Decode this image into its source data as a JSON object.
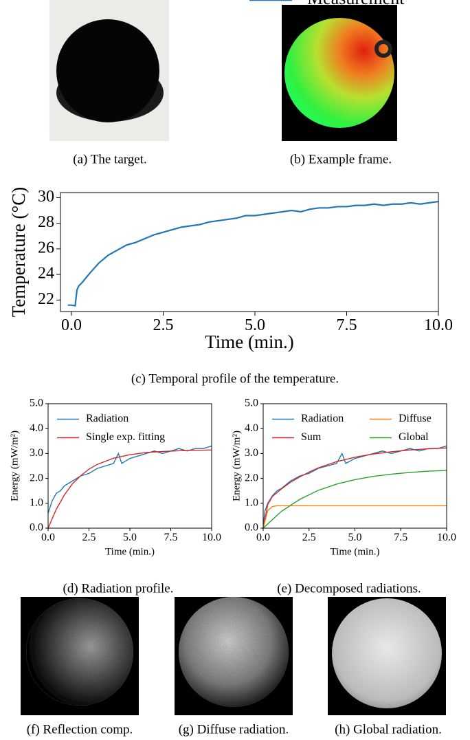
{
  "images": [
    {
      "caption": "(a) The target."
    },
    {
      "caption": "(b) Example frame."
    },
    {
      "caption": "(f) Reflection comp."
    },
    {
      "caption": "(g) Diffuse radiation."
    },
    {
      "caption": "(h) Global radiation."
    }
  ],
  "chart_data": [
    {
      "type": "line",
      "caption": "(c) Temporal profile of the temperature.",
      "xlabel": "Time (min.)",
      "ylabel": "Temperature (°C)",
      "xlim": [
        -0.3,
        10.0
      ],
      "ylim": [
        21.1,
        30.4
      ],
      "xticks": [
        {
          "value": 0,
          "label": "0.0"
        },
        2.5,
        {
          "value": 5,
          "label": "5.0"
        },
        7.5,
        {
          "value": 10,
          "label": "10.0"
        }
      ],
      "yticks": [
        22,
        24,
        26,
        28,
        30
      ],
      "legend": "lower right",
      "legend_columns": 1,
      "series": [
        {
          "name": "Measurement",
          "color": "#1f77b4",
          "x": [
            -0.1,
            0,
            0.1,
            0.15,
            0.2,
            0.3,
            0.5,
            0.75,
            1,
            1.25,
            1.5,
            1.75,
            2,
            2.25,
            2.5,
            2.75,
            3,
            3.25,
            3.5,
            3.75,
            4,
            4.25,
            4.5,
            4.75,
            5,
            5.25,
            5.5,
            5.75,
            6,
            6.25,
            6.5,
            6.75,
            7,
            7.25,
            7.5,
            7.75,
            8,
            8.25,
            8.5,
            8.75,
            9,
            9.25,
            9.5,
            9.75,
            10
          ],
          "values": [
            21.6,
            21.6,
            21.55,
            22.8,
            23.1,
            23.4,
            24.1,
            24.9,
            25.5,
            25.9,
            26.3,
            26.5,
            26.8,
            27.1,
            27.3,
            27.5,
            27.7,
            27.8,
            27.9,
            28.1,
            28.2,
            28.3,
            28.4,
            28.6,
            28.6,
            28.7,
            28.8,
            28.9,
            29.0,
            28.9,
            29.1,
            29.2,
            29.2,
            29.3,
            29.3,
            29.4,
            29.4,
            29.5,
            29.4,
            29.5,
            29.5,
            29.6,
            29.5,
            29.6,
            29.7
          ]
        }
      ]
    },
    {
      "type": "line",
      "caption": "(d) Radiation profile.",
      "xlabel": "Time (min.)",
      "ylabel": "Energy (mW/m²)",
      "xlim": [
        0,
        10
      ],
      "ylim": [
        0,
        5
      ],
      "xticks": [
        {
          "value": 0,
          "label": "0.0"
        },
        2.5,
        {
          "value": 5,
          "label": "5.0"
        },
        7.5,
        {
          "value": 10,
          "label": "10.0"
        }
      ],
      "yticks": [
        {
          "value": 0,
          "label": "0.0"
        },
        {
          "value": 1,
          "label": "1.0"
        },
        {
          "value": 2,
          "label": "2.0"
        },
        {
          "value": 3,
          "label": "3.0"
        },
        {
          "value": 4,
          "label": "4.0"
        },
        {
          "value": 5,
          "label": "5.0"
        }
      ],
      "legend": "upper left",
      "legend_columns": 1,
      "series": [
        {
          "name": "Radiation",
          "color": "#1f77b4",
          "x": [
            0,
            0.25,
            0.5,
            0.75,
            1,
            1.5,
            2,
            2.5,
            3,
            3.5,
            4,
            4.3,
            4.5,
            5,
            5.5,
            6,
            6.5,
            7,
            7.5,
            8,
            8.5,
            9,
            9.5,
            10
          ],
          "values": [
            0.6,
            1.1,
            1.4,
            1.5,
            1.7,
            1.9,
            2.1,
            2.2,
            2.4,
            2.5,
            2.6,
            3.0,
            2.6,
            2.8,
            2.9,
            3.0,
            3.1,
            3.0,
            3.1,
            3.2,
            3.1,
            3.2,
            3.2,
            3.3
          ]
        },
        {
          "name": "Single exp. fitting",
          "color": "#d62728",
          "x": [
            0,
            0.5,
            1,
            1.5,
            2,
            2.5,
            3,
            4,
            5,
            6,
            7,
            8,
            9,
            10
          ],
          "values": [
            0,
            0.76,
            1.34,
            1.79,
            2.11,
            2.37,
            2.56,
            2.81,
            2.95,
            3.04,
            3.08,
            3.11,
            3.13,
            3.14
          ]
        }
      ]
    },
    {
      "type": "line",
      "caption": "(e) Decomposed radiations.",
      "xlabel": "Time (min.)",
      "ylabel": "Energy (mW/m²)",
      "xlim": [
        0,
        10
      ],
      "ylim": [
        0,
        5
      ],
      "xticks": [
        {
          "value": 0,
          "label": "0.0"
        },
        2.5,
        {
          "value": 5,
          "label": "5.0"
        },
        7.5,
        {
          "value": 10,
          "label": "10.0"
        }
      ],
      "yticks": [
        {
          "value": 0,
          "label": "0.0"
        },
        {
          "value": 1,
          "label": "1.0"
        },
        {
          "value": 2,
          "label": "2.0"
        },
        {
          "value": 3,
          "label": "3.0"
        },
        {
          "value": 4,
          "label": "4.0"
        },
        {
          "value": 5,
          "label": "5.0"
        }
      ],
      "legend": "upper left",
      "legend_columns": 2,
      "series": [
        {
          "name": "Radiation",
          "color": "#1f77b4",
          "x": [
            0,
            0.1,
            0.25,
            0.5,
            0.75,
            1,
            1.5,
            2,
            2.5,
            3,
            3.5,
            4,
            4.3,
            4.5,
            5,
            5.5,
            6,
            6.5,
            7,
            7.5,
            8,
            8.5,
            9,
            9.5,
            10
          ],
          "values": [
            0.1,
            0.7,
            1.0,
            1.3,
            1.5,
            1.6,
            1.9,
            2.1,
            2.2,
            2.4,
            2.5,
            2.6,
            3.0,
            2.6,
            2.8,
            2.9,
            3.0,
            3.1,
            3.0,
            3.1,
            3.2,
            3.1,
            3.2,
            3.2,
            3.3
          ]
        },
        {
          "name": "Sum",
          "color": "#d62728",
          "x": [
            0,
            0.25,
            0.5,
            1,
            1.5,
            2,
            2.5,
            3,
            4,
            5,
            6,
            7,
            8,
            9,
            10
          ],
          "values": [
            0,
            0.95,
            1.27,
            1.58,
            1.85,
            2.06,
            2.25,
            2.42,
            2.67,
            2.85,
            2.98,
            3.07,
            3.14,
            3.19,
            3.22
          ]
        },
        {
          "name": "Diffuse",
          "color": "#ff7f0e",
          "x": [
            0,
            0.25,
            0.5,
            0.75,
            1,
            10
          ],
          "values": [
            0,
            0.7,
            0.87,
            0.9,
            0.9,
            0.9
          ]
        },
        {
          "name": "Global",
          "color": "#2ca02c",
          "x": [
            0,
            1,
            2,
            3,
            4,
            5,
            6,
            7,
            8,
            9,
            10
          ],
          "values": [
            0,
            0.68,
            1.16,
            1.52,
            1.77,
            1.95,
            2.08,
            2.17,
            2.24,
            2.29,
            2.32
          ]
        }
      ]
    }
  ]
}
